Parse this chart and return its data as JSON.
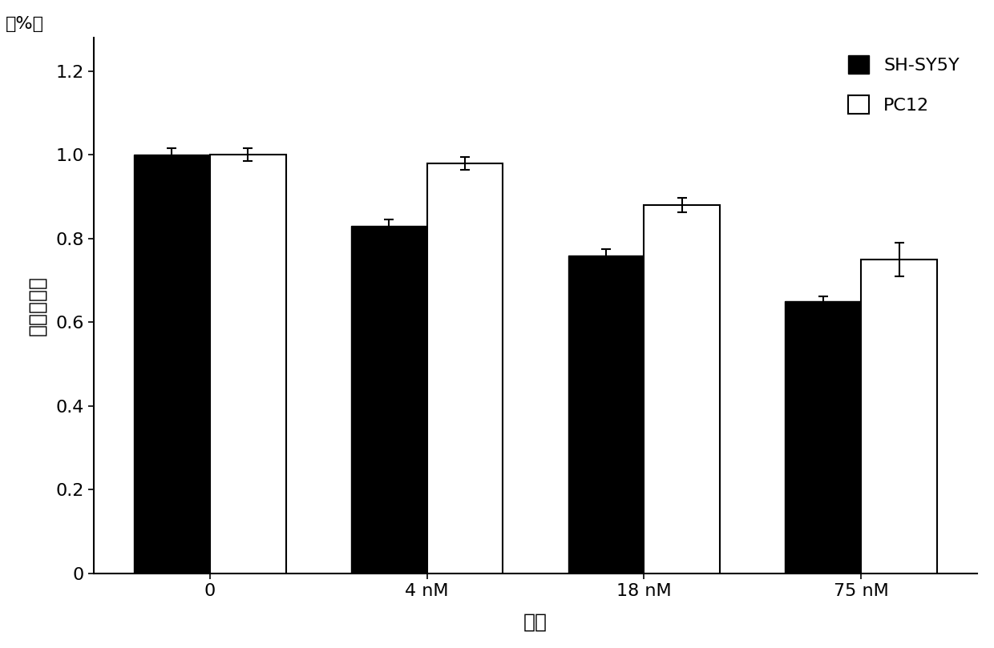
{
  "categories": [
    "0",
    "4 nM",
    "18 nM",
    "75 nM"
  ],
  "shsy5y_values": [
    1.0,
    0.83,
    0.76,
    0.65
  ],
  "pc12_values": [
    1.0,
    0.98,
    0.88,
    0.75
  ],
  "shsy5y_errors": [
    0.015,
    0.015,
    0.015,
    0.012
  ],
  "pc12_errors": [
    0.015,
    0.015,
    0.018,
    0.04
  ],
  "shsy5y_color": "#000000",
  "pc12_color": "#ffffff",
  "pc12_edgecolor": "#000000",
  "bar_width": 0.35,
  "ylim": [
    0,
    1.28
  ],
  "yticks": [
    0,
    0.2,
    0.4,
    0.6,
    0.8,
    1.0,
    1.2
  ],
  "ylabel": "细胞存活率",
  "ylabel_unit": "（%）",
  "xlabel": "浓度",
  "legend_labels": [
    "SH-SY5Y",
    "PC12"
  ],
  "title": "",
  "background_color": "#ffffff",
  "capsize": 4,
  "legend_fontsize": 16,
  "axis_fontsize": 18,
  "tick_fontsize": 16
}
